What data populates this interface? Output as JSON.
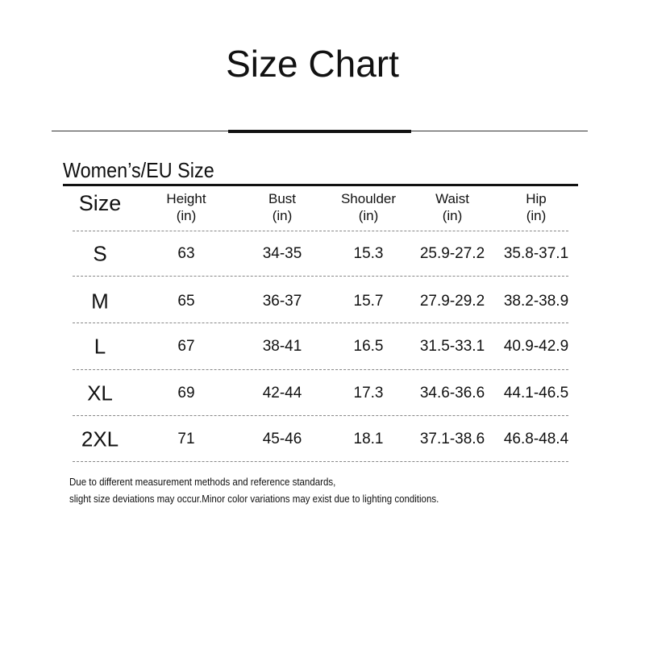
{
  "title": "Size Chart",
  "section_title": "Women’s/EU Size",
  "columns": [
    {
      "label": "Size",
      "unit": ""
    },
    {
      "label": "Height",
      "unit": "(in)"
    },
    {
      "label": "Bust",
      "unit": "(in)"
    },
    {
      "label": "Shoulder",
      "unit": "(in)"
    },
    {
      "label": "Waist",
      "unit": "(in)"
    },
    {
      "label": "Hip",
      "unit": "(in)"
    }
  ],
  "rows": [
    [
      "S",
      "63",
      "34-35",
      "15.3",
      "25.9-27.2",
      "35.8-37.1"
    ],
    [
      "M",
      "65",
      "36-37",
      "15.7",
      "27.9-29.2",
      "38.2-38.9"
    ],
    [
      "L",
      "67",
      "38-41",
      "16.5",
      "31.5-33.1",
      "40.9-42.9"
    ],
    [
      "XL",
      "69",
      "42-44",
      "17.3",
      "34.6-36.6",
      "44.1-46.5"
    ],
    [
      "2XL",
      "71",
      "45-46",
      "18.1",
      "37.1-38.6",
      "46.8-48.4"
    ]
  ],
  "notes": [
    "Due to different measurement methods and reference standards,",
    "slight size deviations may occur.Minor color variations may exist due to lighting conditions."
  ]
}
